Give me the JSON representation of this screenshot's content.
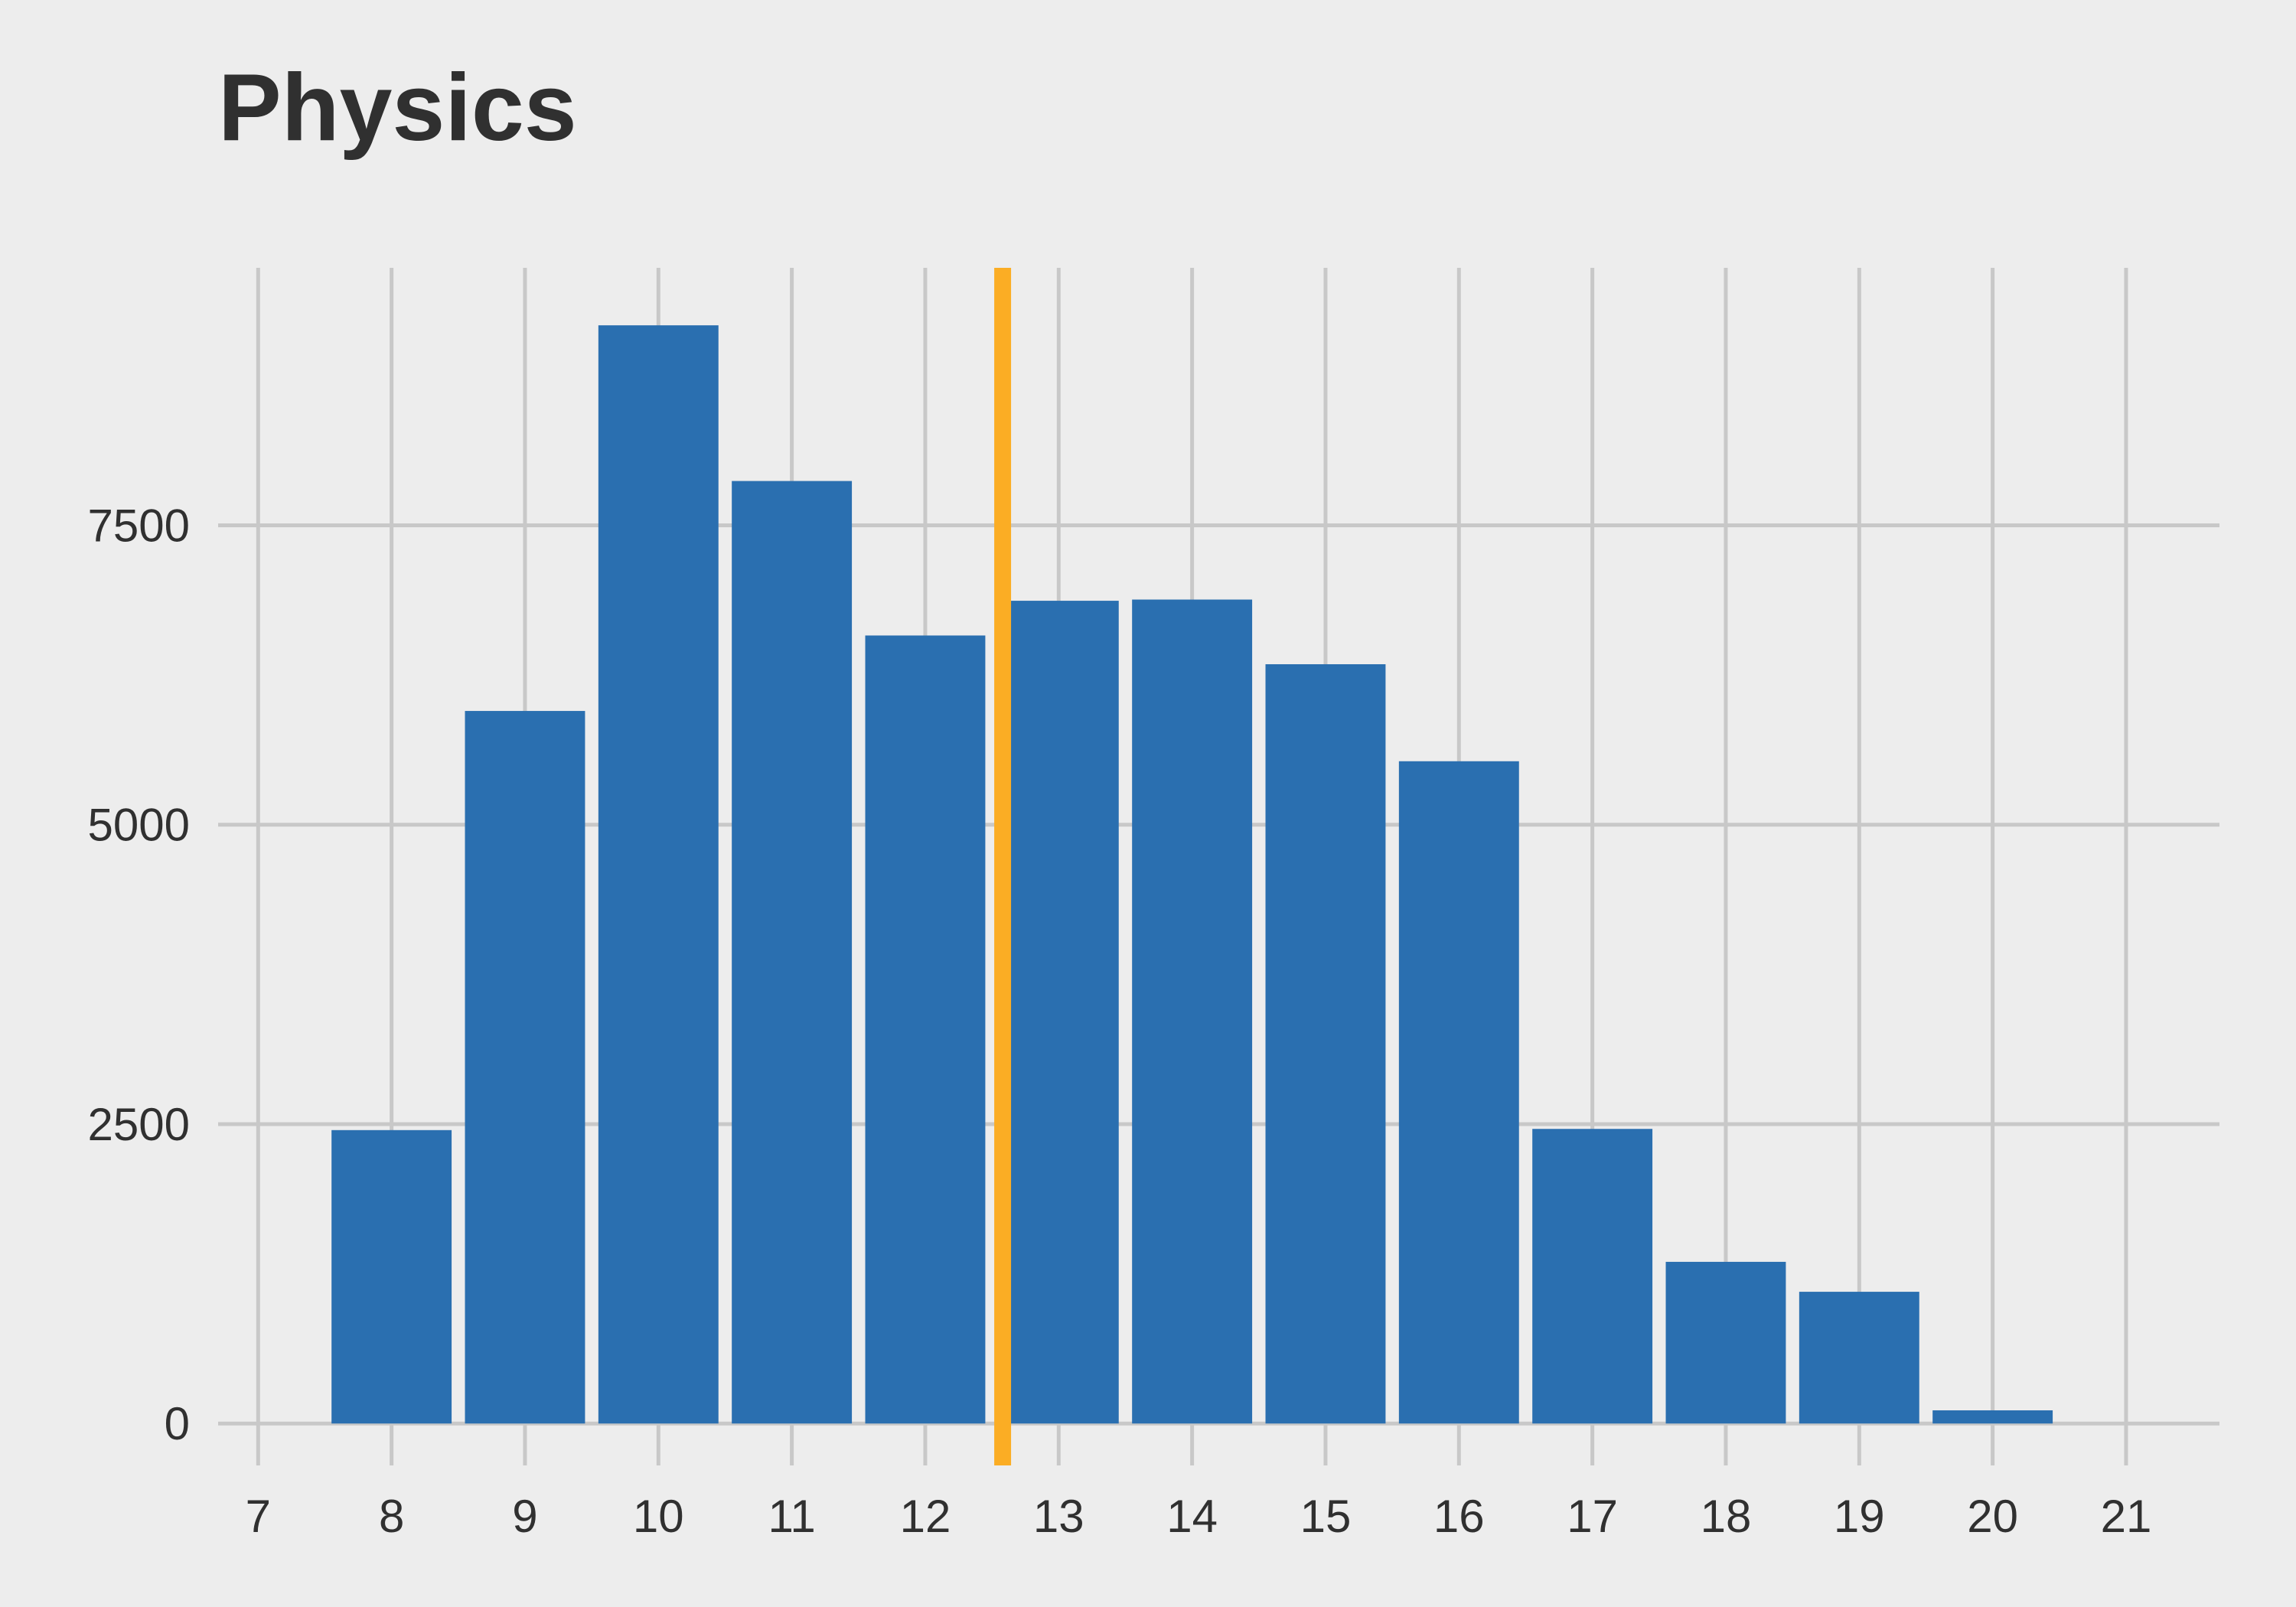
{
  "chart_data": {
    "type": "bar",
    "title": "Physics",
    "xlabel": "",
    "ylabel": "",
    "categories": [
      8,
      9,
      10,
      11,
      12,
      13,
      14,
      15,
      16,
      17,
      18,
      19,
      20
    ],
    "values": [
      2450,
      5950,
      9170,
      7870,
      6580,
      6870,
      6880,
      6340,
      5530,
      2460,
      1350,
      1100,
      110
    ],
    "xlim": [
      6.7,
      21.7
    ],
    "ylim": [
      -350,
      9650
    ],
    "x_ticks": [
      7,
      8,
      9,
      10,
      11,
      12,
      13,
      14,
      15,
      16,
      17,
      18,
      19,
      20,
      21
    ],
    "y_ticks": [
      0,
      2500,
      5000,
      7500
    ],
    "reference_line": {
      "x": 12.58
    },
    "grid": true,
    "legend": "none",
    "colors": {
      "bar": "#2a6fb0",
      "reference_line": "#fbad24",
      "grid": "#c8c8c8",
      "background": "#ededed",
      "text": "#303030"
    }
  }
}
